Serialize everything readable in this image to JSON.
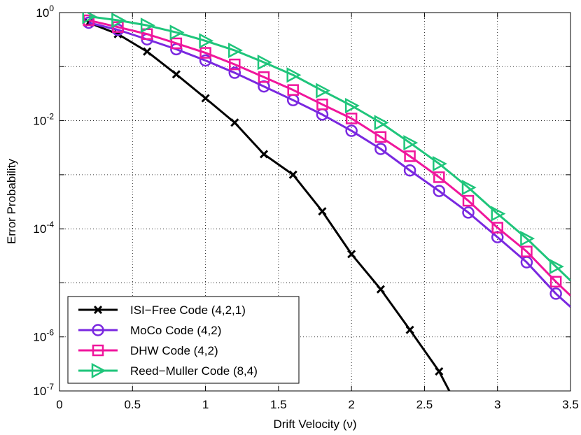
{
  "chart_data": {
    "type": "line",
    "title": "",
    "xlabel": "Drift Velocity (ν)",
    "ylabel": "Error Probability",
    "xlim": [
      0,
      3.5
    ],
    "ylim": [
      1e-07,
      1
    ],
    "yscale": "log",
    "grid": true,
    "legend_position": "bottom-left",
    "x_ticks": [
      {
        "value": 0,
        "label": "0"
      },
      {
        "value": 0.5,
        "label": "0.5"
      },
      {
        "value": 1,
        "label": "1"
      },
      {
        "value": 1.5,
        "label": "1.5"
      },
      {
        "value": 2,
        "label": "2"
      },
      {
        "value": 2.5,
        "label": "2.5"
      },
      {
        "value": 3,
        "label": "3"
      },
      {
        "value": 3.5,
        "label": "3.5"
      }
    ],
    "y_ticks": [
      {
        "value": 1,
        "base": "10",
        "exp": "0"
      },
      {
        "value": 0.01,
        "base": "10",
        "exp": "-2"
      },
      {
        "value": 0.0001,
        "base": "10",
        "exp": "-4"
      },
      {
        "value": 1e-06,
        "base": "10",
        "exp": "-6"
      },
      {
        "value": 1e-07,
        "base": "10",
        "exp": "-7"
      }
    ],
    "series": [
      {
        "name": "ISI−Free Code (4,2,1)",
        "color": "#000000",
        "marker": "x",
        "x": [
          0.2,
          0.4,
          0.6,
          0.8,
          1.0,
          1.2,
          1.4,
          1.6,
          1.8,
          2.0,
          2.2,
          2.4,
          2.6,
          2.7
        ],
        "y": [
          0.65,
          0.4,
          0.19,
          0.072,
          0.026,
          0.0092,
          0.0024,
          0.001,
          0.00021,
          3.4e-05,
          7.6e-06,
          1.35e-06,
          2.3e-07,
          7e-08
        ]
      },
      {
        "name": "MoCo Code (4,2)",
        "color": "#7a28e0",
        "marker": "circle",
        "x": [
          0.2,
          0.4,
          0.6,
          0.8,
          1.0,
          1.2,
          1.4,
          1.6,
          1.8,
          2.0,
          2.2,
          2.4,
          2.6,
          2.8,
          3.0,
          3.2,
          3.4,
          3.5
        ],
        "y": [
          0.65,
          0.48,
          0.32,
          0.21,
          0.13,
          0.077,
          0.043,
          0.024,
          0.013,
          0.0065,
          0.003,
          0.0012,
          0.0005,
          0.0002,
          7e-05,
          2.4e-05,
          6.3e-06,
          3.6e-06
        ]
      },
      {
        "name": "DHW Code (4,2)",
        "color": "#f0169c",
        "marker": "square",
        "x": [
          0.2,
          0.4,
          0.6,
          0.8,
          1.0,
          1.2,
          1.4,
          1.6,
          1.8,
          2.0,
          2.2,
          2.4,
          2.6,
          2.8,
          3.0,
          3.2,
          3.4,
          3.5
        ],
        "y": [
          0.72,
          0.54,
          0.4,
          0.27,
          0.18,
          0.11,
          0.064,
          0.037,
          0.02,
          0.011,
          0.005,
          0.0022,
          0.0009,
          0.00033,
          0.000105,
          3.8e-05,
          1.05e-05,
          5.8e-06
        ]
      },
      {
        "name": "Reed−Muller Code (8,4)",
        "color": "#1fc57b",
        "marker": "triangle-right",
        "x": [
          0.2,
          0.4,
          0.6,
          0.8,
          1.0,
          1.2,
          1.4,
          1.6,
          1.8,
          2.0,
          2.2,
          2.4,
          2.6,
          2.8,
          3.0,
          3.2,
          3.4,
          3.5
        ],
        "y": [
          0.85,
          0.72,
          0.58,
          0.43,
          0.3,
          0.2,
          0.12,
          0.07,
          0.036,
          0.019,
          0.0092,
          0.0039,
          0.0016,
          0.00058,
          0.00019,
          6.6e-05,
          2e-05,
          1.1e-05
        ]
      }
    ]
  }
}
